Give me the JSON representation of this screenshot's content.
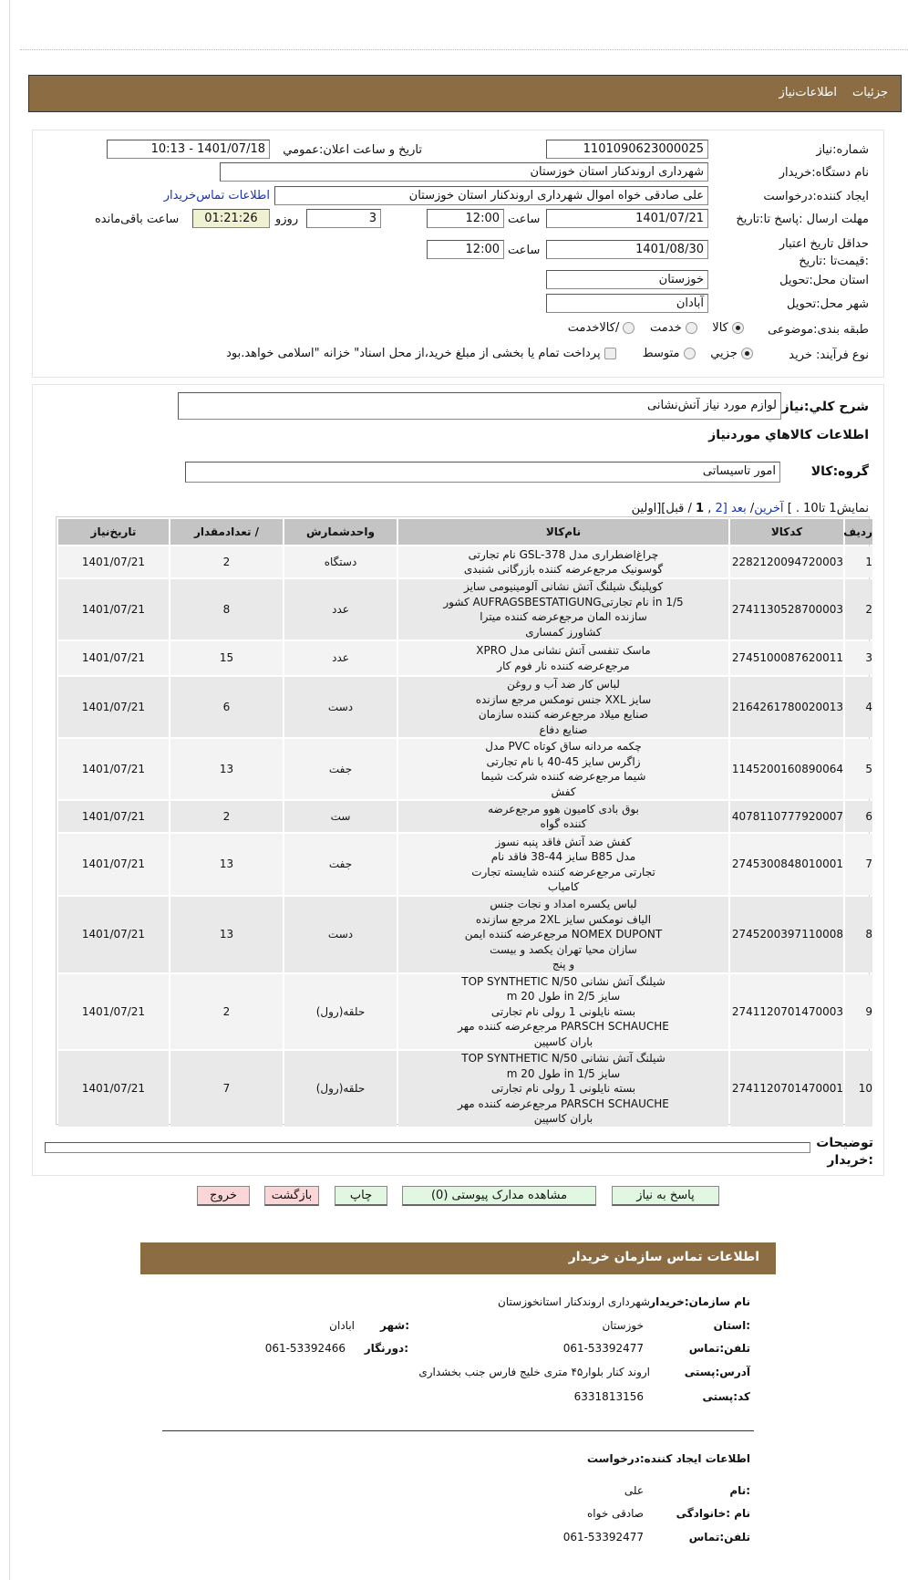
{
  "header": {
    "tab_details": "جزئیات",
    "tab_info": "اطلاعات‌نیاز"
  },
  "form": {
    "need_number_label": "شماره:نیاز",
    "need_number": "1101090623000025",
    "announce_label": "تاریخ و ساعت اعلان:عمومي",
    "announce_value": "1401/07/18 - 10:13",
    "buyer_label": "نام دستگاه:خریدار",
    "buyer_value": "شهرداری اروندکنار استان خوزستان",
    "creator_label": "ایجاد کننده:درخواست",
    "creator_value": "علی صادقی خواه اموال شهرداری اروندکنار استان خوزستان",
    "contact_link": "اطلاعات تماس‌خریدار",
    "deadline_label": "مهلت ارسال :پاسخ تا:تاریخ",
    "deadline_date": "1401/07/21",
    "time_label": "ساعت",
    "deadline_time": "12:00",
    "days": "3",
    "days_label": "روزو",
    "remaining": "01:21:26",
    "remaining_label": "ساعت باقی‌مانده",
    "validity_label": "حداقل تاریخ اعتبار :قیمت‌تا :تاریخ",
    "validity_date": "1401/08/30",
    "validity_time": "12:00",
    "province_label": "استان محل:تحویل",
    "province_value": "خوزستان",
    "city_label": "شهر محل:تحویل",
    "city_value": "آبادان",
    "category_label": "طبقه بندی:موضوعی",
    "category_options": [
      "کالا",
      "خدمت",
      "/کالاخدمت"
    ],
    "category_selected": "کالا",
    "process_label": "نوع فرآیند: خرید",
    "process_options": [
      "جزیي",
      "متوسط"
    ],
    "process_selected": "جزیي",
    "treasury_text": "پرداخت تمام یا بخشی از مبلغ خرید،از محل اسناد\" خزانه \"اسلامی خواهد.بود",
    "treasury_checked": false
  },
  "goods": {
    "summary_label": "شرح کلي:نیاز",
    "summary_value": "لوازم مورد نیاز آتش‌نشانی",
    "section_title": "اطلاعات کالاهاي موردنیاز",
    "group_label": "گروه:کالا",
    "group_value": "امور تاسیساتی",
    "pagination": {
      "showing": "نمایش1 تا10 . ]",
      "last": "آخرین",
      "next": "بعد",
      "p2": "[2",
      "sep": " ,",
      "p1": "1",
      "prev": " / قبل][اولین"
    },
    "columns": [
      "ردیف",
      "کدکالا",
      "نام‌کالا",
      "واحدشمارش",
      "/ تعدادمقدار",
      "تاریخ‌نیاز"
    ],
    "rows": [
      {
        "n": "1",
        "code": "2282120094720003",
        "name": "چراغ‌اضطراری مدل GSL-378 نام تجارتی\nگوسونیک مرجع‌عرضه کننده بازرگانی شنبدی",
        "unit": "دستگاه",
        "qty": "2",
        "date": "1401/07/21"
      },
      {
        "n": "2",
        "code": "2741130528700003",
        "name": "کوپلینگ شیلنگ آتش نشانی آلومینیومی سایز\n1/5 in نام تجارتیAUFRAGSBESTATIGUNG کشور\nسازنده المان مرجع‌عرضه کننده میترا\nکشاورز کمساری",
        "unit": "عدد",
        "qty": "8",
        "date": "1401/07/21"
      },
      {
        "n": "3",
        "code": "2745100087620011",
        "name": "ماسک تنفسی آتش نشانی مدل XPRO\nمرجع‌عرضه کننده نار فوم کار",
        "unit": "عدد",
        "qty": "15",
        "date": "1401/07/21"
      },
      {
        "n": "4",
        "code": "2164261780020013",
        "name": "لباس کار ضد آب و روغن\nسایز XXL جنس نومکس مرجع سازنده\nصنایع میلاد مرجع‌عرضه کننده سازمان\nصنایع دفاع",
        "unit": "دست",
        "qty": "6",
        "date": "1401/07/21"
      },
      {
        "n": "5",
        "code": "1145200160890064",
        "name": "چکمه مردانه ساق کوتاه PVC مدل\nزاگرس سایز 45-40 با نام تجارتی\nشیما مرجع‌عرضه کننده شرکت شیما\nکفش",
        "unit": "جفت",
        "qty": "13",
        "date": "1401/07/21"
      },
      {
        "n": "6",
        "code": "4078110777920007",
        "name": "بوق بادی کامیون هوو مرجع‌عرضه\nکننده گواه",
        "unit": "ست",
        "qty": "2",
        "date": "1401/07/21"
      },
      {
        "n": "7",
        "code": "2745300848010001",
        "name": "کفش ضد آتش فاقد پنبه نسوز\nمدل B85 سایز 44-38 فاقد نام\nتجارتی مرجع‌عرضه کننده شایسته تجارت\nکامیاب",
        "unit": "جفت",
        "qty": "13",
        "date": "1401/07/21"
      },
      {
        "n": "8",
        "code": "2745200397110008",
        "name": "لباس یکسره امداد و نجات جنس\nالیاف نومکس سایز 2XL مرجع سازنده\nNOMEX DUPONT مرجع‌عرضه کننده ایمن\nسازان محیا تهران یکصد و بیست\nو پنج",
        "unit": "دست",
        "qty": "13",
        "date": "1401/07/21"
      },
      {
        "n": "9",
        "code": "2741120701470003",
        "name": "شیلنگ آتش نشانی TOP SYNTHETIC N/50\nسایز 2/5 in طول 20 m\nبسته نایلونی 1 رولی نام تجارتی\nPARSCH SCHAUCHE مرجع‌عرضه کننده مهر\nباران کاسپین",
        "unit": "حلقه(رول)",
        "qty": "2",
        "date": "1401/07/21"
      },
      {
        "n": "10",
        "code": "2741120701470001",
        "name": "شیلنگ آتش نشانی TOP SYNTHETIC N/50\nسایز 1/5 in طول 20 m\nبسته نایلونی 1 رولی نام تجارتی\nPARSCH SCHAUCHE مرجع‌عرضه کننده مهر\nباران کاسپین",
        "unit": "حلقه(رول)",
        "qty": "7",
        "date": "1401/07/21"
      }
    ],
    "buyer_notes_label": "توضیحات :خریدار",
    "buyer_notes_value": ""
  },
  "buttons": {
    "reply": "پاسخ به نیاز",
    "attachments": "مشاهده مدارک پیوستی (0)",
    "print": "چاپ",
    "back": "بازگشت",
    "exit": "خروج"
  },
  "contact": {
    "title": "اطلاعات تماس سازمان خریدار",
    "org_label": "نام سازمان:خریدار",
    "org_value": "شهرداری اروندکنار استانخوزستان",
    "province_label": ":استان",
    "province_value": "خوزستان",
    "city_label": ":شهر",
    "city_value": "ابادان",
    "phone_label": "تلفن:تماس",
    "phone_value": "061-53392477",
    "fax_label": ":دورنگار",
    "fax_value": "061-53392466",
    "address_label": "آدرس:پستی",
    "address_value": "اروند کنار بلوار۴۵ متری خلیج فارس جنب بخشداری",
    "postal_label": "کد:پستی",
    "postal_value": "6331813156",
    "creator_title": "اطلاعات ایجاد کننده:درخواست",
    "name_label": ":نام",
    "name_value": "علی",
    "family_label": "نام :خانوادگی",
    "family_value": "صادقی خواه",
    "cphone_label": "تلفن:تماس",
    "cphone_value": "061-53392477"
  },
  "colors": {
    "brand_bar": "#8c6d43",
    "reply_button": "#e2f7e2",
    "exit_button": "#fcd6d6",
    "timer_bg": "#f0f0d2",
    "link": "#1a33b0"
  }
}
